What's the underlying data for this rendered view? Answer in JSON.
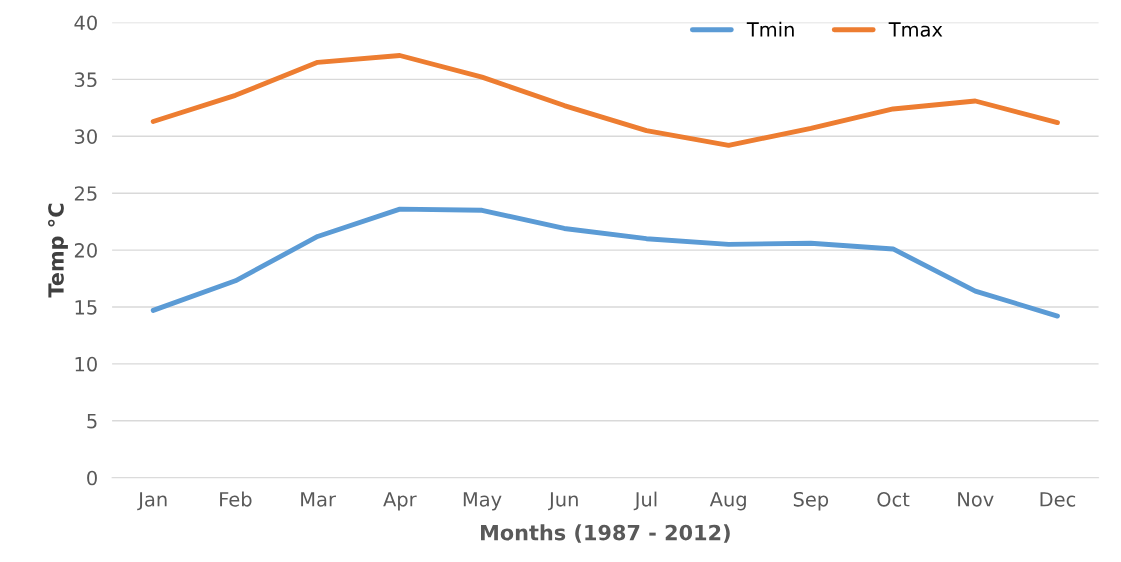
{
  "chart_data": {
    "type": "line",
    "xlabel": "Months (1987 - 2012)",
    "ylabel": "Temp °C",
    "categories": [
      "Jan",
      "Feb",
      "Mar",
      "Apr",
      "May",
      "Jun",
      "Jul",
      "Aug",
      "Sep",
      "Oct",
      "Nov",
      "Dec"
    ],
    "series": [
      {
        "name": "Tmin",
        "color": "#5b9bd5",
        "values": [
          14.7,
          17.3,
          21.2,
          23.6,
          23.5,
          21.9,
          21.0,
          20.5,
          20.6,
          20.1,
          16.4,
          14.2
        ]
      },
      {
        "name": "Tmax",
        "color": "#ed7d31",
        "values": [
          31.3,
          33.6,
          36.5,
          37.1,
          35.2,
          32.7,
          30.5,
          29.2,
          30.7,
          32.4,
          33.1,
          31.2
        ]
      }
    ],
    "ylim": [
      0,
      40
    ],
    "yticks": [
      0,
      5,
      10,
      15,
      20,
      25,
      30,
      35,
      40
    ],
    "grid": "y",
    "legend": "top right",
    "marker": "none",
    "line_style": "solid"
  }
}
